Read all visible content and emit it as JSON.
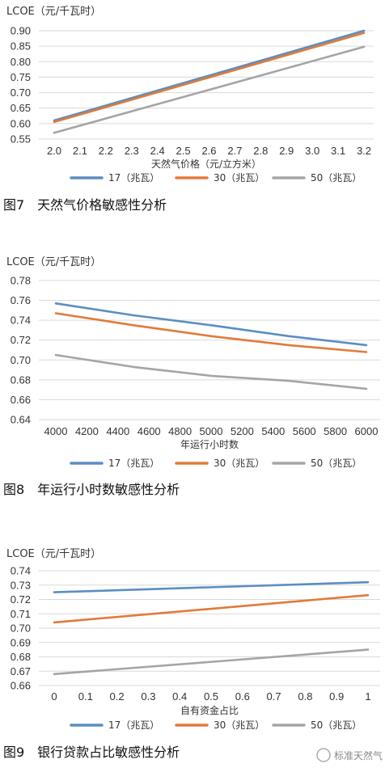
{
  "colors": {
    "s17": "#5B8EC1",
    "s30": "#E07B39",
    "s50": "#A5A5A5"
  },
  "watermark": "标准天然气",
  "chart_data": [
    {
      "type": "line",
      "ylabel": "LCOE（元/千瓦时）",
      "xlabel": "天然气价格（元/立方米）",
      "caption": "图7　天然气价格敏感性分析",
      "categories": [
        "2.0",
        "2.1",
        "2.2",
        "2.3",
        "2.4",
        "2.5",
        "2.6",
        "2.7",
        "2.8",
        "2.9",
        "3.0",
        "3.1",
        "3.2"
      ],
      "x": [
        2.0,
        3.2
      ],
      "ylim": [
        0.55,
        0.9
      ],
      "yticks": [
        "0.55",
        "0.60",
        "0.65",
        "0.70",
        "0.75",
        "0.80",
        "0.85",
        "0.90"
      ],
      "legend": "bottom",
      "series": [
        {
          "name": "17（兆瓦）",
          "values": [
            0.61,
            0.9
          ]
        },
        {
          "name": "30（兆瓦）",
          "values": [
            0.605,
            0.893
          ]
        },
        {
          "name": "50（兆瓦）",
          "values": [
            0.57,
            0.848
          ]
        }
      ]
    },
    {
      "type": "line",
      "ylabel": "LCOE（元/千瓦时）",
      "xlabel": "年运行小时数",
      "caption": "图8　年运行小时数敏感性分析",
      "categories": [
        "4000",
        "4200",
        "4400",
        "4600",
        "4800",
        "5000",
        "5200",
        "5400",
        "5600",
        "5800",
        "6000"
      ],
      "x": [
        4000,
        4500,
        5000,
        5500,
        6000
      ],
      "ylim": [
        0.64,
        0.78
      ],
      "yticks": [
        "0.64",
        "0.66",
        "0.68",
        "0.70",
        "0.72",
        "0.74",
        "0.76",
        "0.78"
      ],
      "legend": "bottom",
      "series": [
        {
          "name": "17（兆瓦）",
          "values": [
            0.757,
            0.745,
            0.735,
            0.724,
            0.715
          ]
        },
        {
          "name": "30（兆瓦）",
          "values": [
            0.747,
            0.735,
            0.724,
            0.715,
            0.708
          ]
        },
        {
          "name": "50（兆瓦）",
          "values": [
            0.705,
            0.693,
            0.684,
            0.679,
            0.671
          ]
        }
      ]
    },
    {
      "type": "line",
      "ylabel": "LCOE（元/千瓦时）",
      "xlabel": "自有资金占比",
      "caption": "图9　银行贷款占比敏感性分析",
      "categories": [
        "0",
        "0.1",
        "0.2",
        "0.3",
        "0.4",
        "0.5",
        "0.6",
        "0.7",
        "0.8",
        "0.9",
        "1"
      ],
      "x": [
        0,
        1
      ],
      "ylim": [
        0.66,
        0.74
      ],
      "yticks": [
        "0.66",
        "0.67",
        "0.68",
        "0.69",
        "0.70",
        "0.71",
        "0.72",
        "0.73",
        "0.74"
      ],
      "legend": "bottom",
      "series": [
        {
          "name": "17（兆瓦）",
          "values": [
            0.725,
            0.732
          ]
        },
        {
          "name": "30（兆瓦）",
          "values": [
            0.704,
            0.723
          ]
        },
        {
          "name": "50（兆瓦）",
          "values": [
            0.668,
            0.685
          ]
        }
      ]
    }
  ]
}
